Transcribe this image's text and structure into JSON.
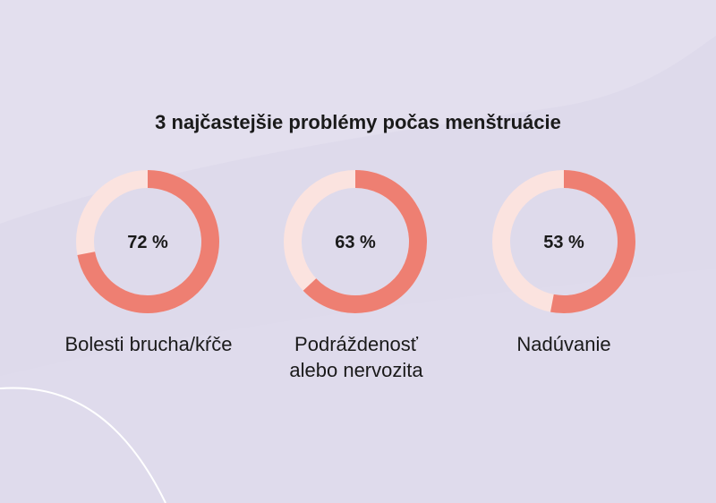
{
  "colors": {
    "background": "#dedaeb",
    "filled": "#ee7f72",
    "remaining": "#fbe3df",
    "text": "#1a1a1a"
  },
  "chart_data": {
    "type": "pie",
    "title": "3 najčastejšie problémy počas menštruácie",
    "categories": [
      "Bolesti brucha/kŕče",
      "Podráždenosť alebo nervozita",
      "Nadúvanie"
    ],
    "category_lines": [
      [
        "Bolesti brucha/kŕče"
      ],
      [
        "Podráždenosť",
        "alebo nervozita"
      ],
      [
        "Nadúvanie"
      ]
    ],
    "values": [
      72,
      63,
      53
    ],
    "value_labels": [
      "72 %",
      "63 %",
      "53 %"
    ],
    "unit": "%"
  }
}
